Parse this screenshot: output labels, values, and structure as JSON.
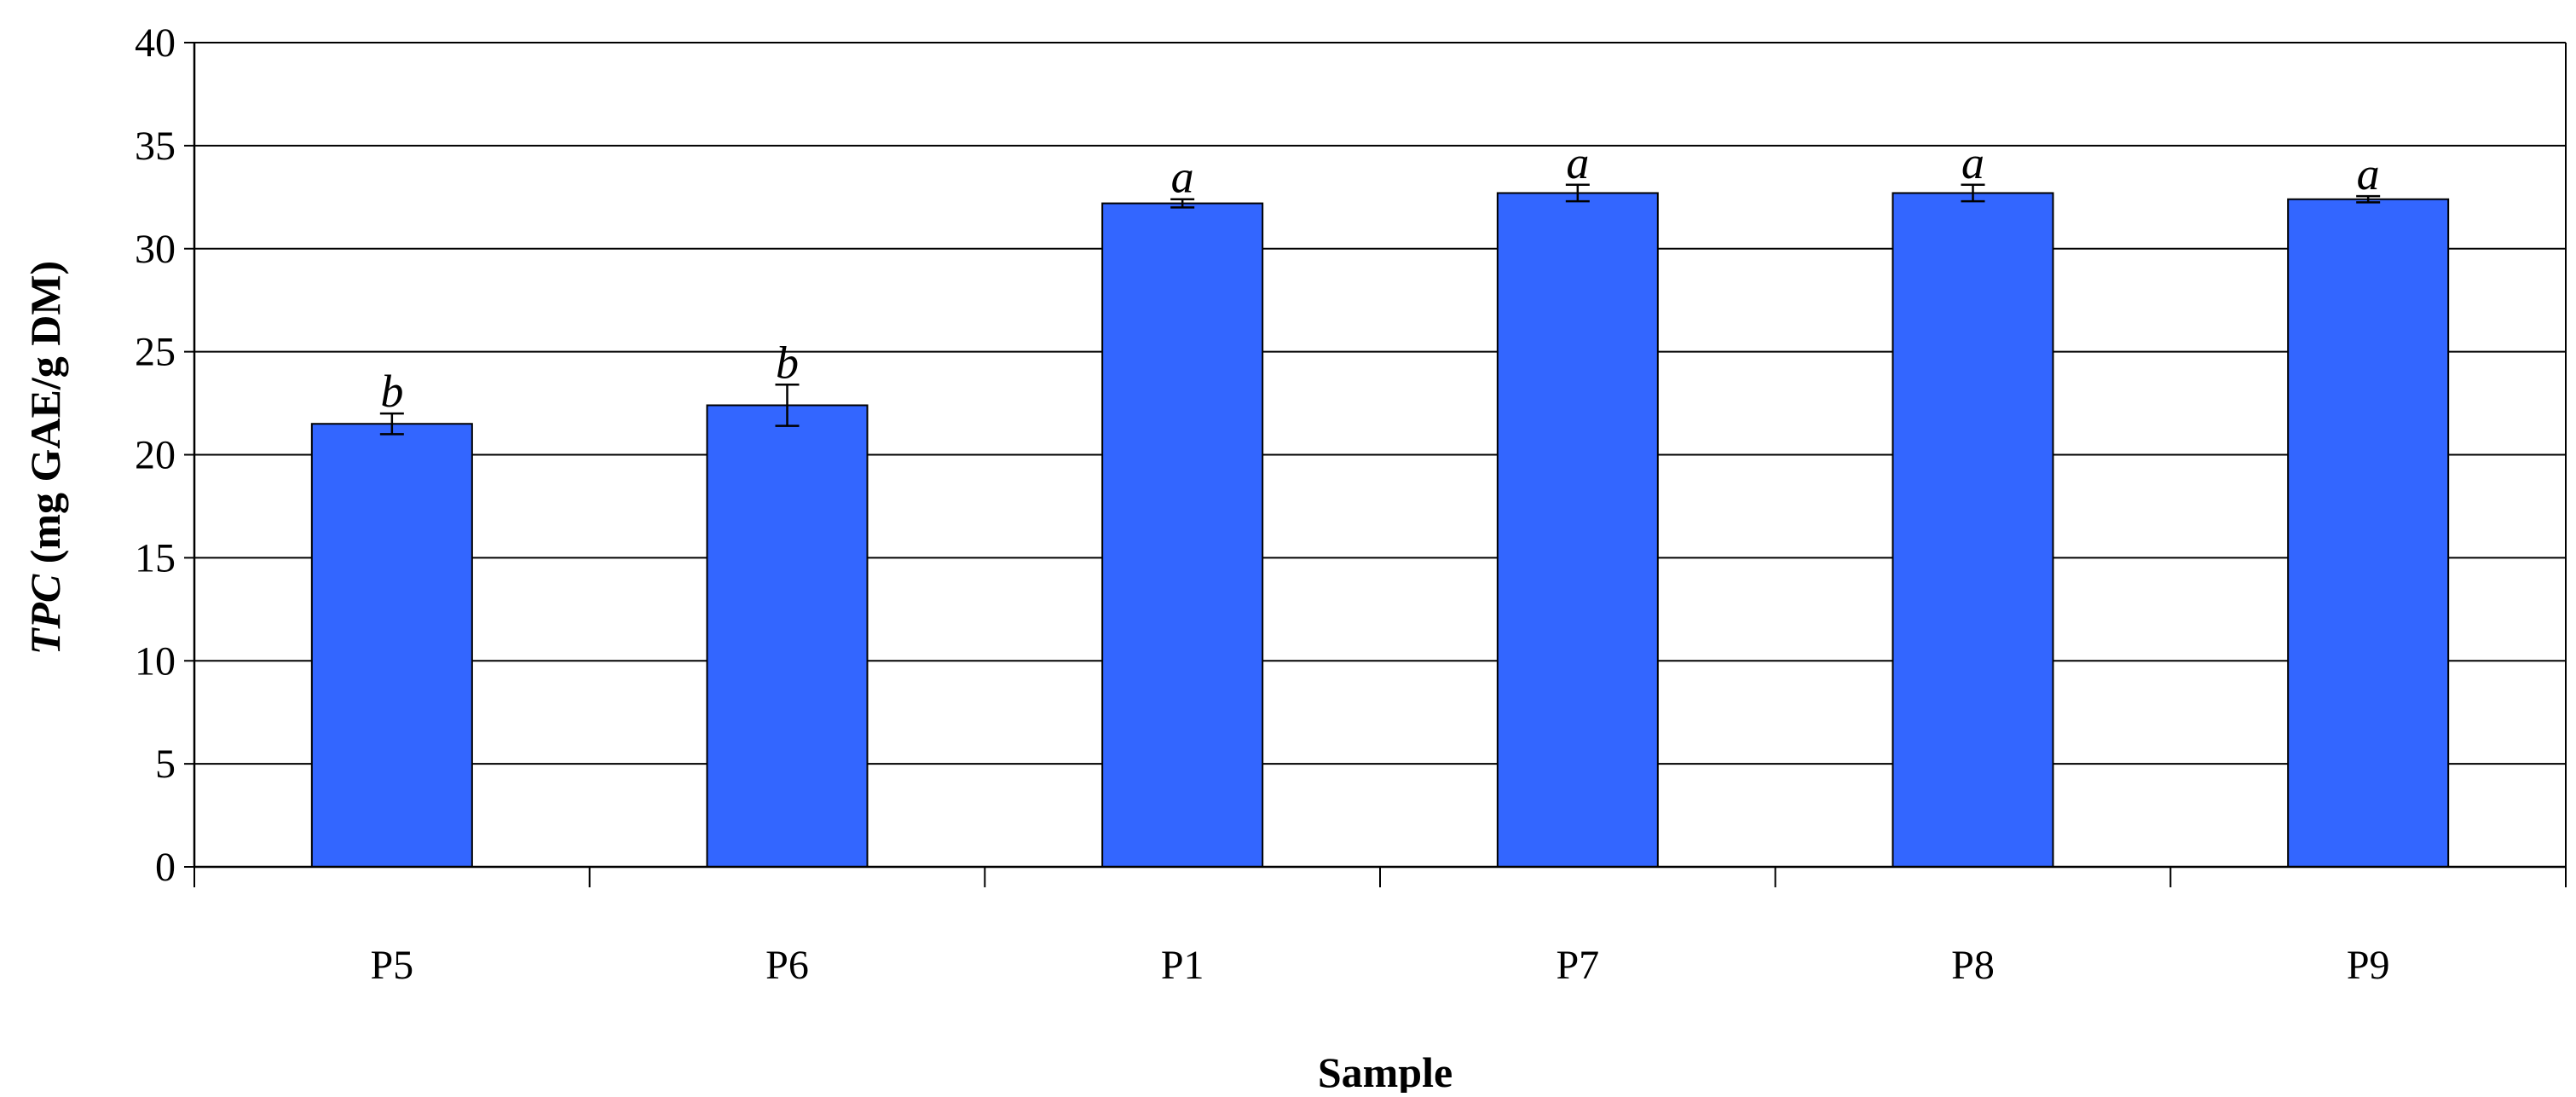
{
  "chart_data": {
    "type": "bar",
    "categories": [
      "P5",
      "P6",
      "P1",
      "P7",
      "P8",
      "P9"
    ],
    "values": [
      21.5,
      22.4,
      32.2,
      32.7,
      32.7,
      32.4
    ],
    "errors": [
      0.5,
      1.0,
      0.2,
      0.4,
      0.4,
      0.15
    ],
    "significance_letters": [
      "b",
      "b",
      "a",
      "a",
      "a",
      "a"
    ],
    "xlabel": "Sample",
    "ylabel_italic": "TPC",
    "ylabel_rest": " (mg GAE/g DM)",
    "ylim": [
      0,
      40
    ],
    "yticks": [
      0,
      5,
      10,
      15,
      20,
      25,
      30,
      35,
      40
    ],
    "grid": true,
    "bar_color": "#3366ff",
    "bar_edge_color": "#000000"
  }
}
